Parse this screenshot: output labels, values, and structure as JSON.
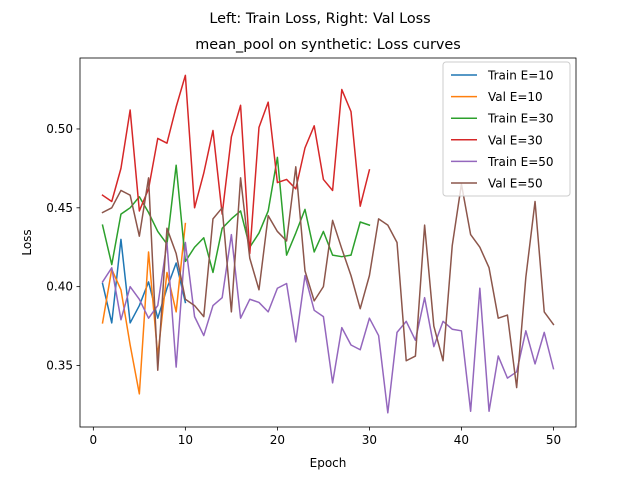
{
  "figure": {
    "suptitle": "Left: Train Loss, Right: Val Loss"
  },
  "chart_data": {
    "type": "line",
    "title": "mean_pool on synthetic: Loss curves",
    "xlabel": "Epoch",
    "ylabel": "Loss",
    "xlim": [
      -1.45,
      52.45
    ],
    "ylim": [
      0.311,
      0.545
    ],
    "xticks": [
      0,
      10,
      20,
      30,
      40,
      50
    ],
    "yticks": [
      0.35,
      0.4,
      0.45,
      0.5
    ],
    "xtick_labels": [
      "0",
      "10",
      "20",
      "30",
      "40",
      "50"
    ],
    "ytick_labels": [
      "0.35",
      "0.40",
      "0.45",
      "0.50"
    ],
    "grid": false,
    "legend_position": "top-right",
    "series": [
      {
        "name": "Train E=10",
        "color": "#1f77b4",
        "x": [
          1,
          2,
          3,
          4,
          5,
          6,
          7,
          8,
          9,
          10
        ],
        "y": [
          0.402,
          0.377,
          0.43,
          0.377,
          0.388,
          0.403,
          0.38,
          0.399,
          0.415,
          0.39
        ]
      },
      {
        "name": "Val E=10",
        "color": "#ff7f0e",
        "x": [
          1,
          2,
          3,
          4,
          5,
          6,
          7,
          8,
          9,
          10
        ],
        "y": [
          0.377,
          0.411,
          0.398,
          0.363,
          0.332,
          0.422,
          0.356,
          0.409,
          0.384,
          0.44
        ]
      },
      {
        "name": "Train E=30",
        "color": "#2ca02c",
        "x": [
          1,
          2,
          3,
          4,
          5,
          6,
          7,
          8,
          9,
          10,
          11,
          12,
          13,
          14,
          15,
          16,
          17,
          18,
          19,
          20,
          21,
          22,
          23,
          24,
          25,
          26,
          27,
          28,
          29,
          30
        ],
        "y": [
          0.439,
          0.414,
          0.446,
          0.45,
          0.457,
          0.447,
          0.435,
          0.427,
          0.477,
          0.416,
          0.425,
          0.431,
          0.409,
          0.437,
          0.443,
          0.448,
          0.425,
          0.434,
          0.448,
          0.482,
          0.42,
          0.434,
          0.449,
          0.422,
          0.435,
          0.42,
          0.419,
          0.42,
          0.441,
          0.439
        ]
      },
      {
        "name": "Val E=30",
        "color": "#d62728",
        "x": [
          1,
          2,
          3,
          4,
          5,
          6,
          7,
          8,
          9,
          10,
          11,
          12,
          13,
          14,
          15,
          16,
          17,
          18,
          19,
          20,
          21,
          22,
          23,
          24,
          25,
          26,
          27,
          28,
          29,
          30
        ],
        "y": [
          0.458,
          0.454,
          0.475,
          0.512,
          0.448,
          0.462,
          0.494,
          0.491,
          0.514,
          0.534,
          0.45,
          0.472,
          0.499,
          0.446,
          0.495,
          0.515,
          0.421,
          0.501,
          0.517,
          0.466,
          0.468,
          0.462,
          0.488,
          0.502,
          0.468,
          0.461,
          0.525,
          0.511,
          0.451,
          0.474
        ]
      },
      {
        "name": "Train E=50",
        "color": "#9467bd",
        "x": [
          1,
          2,
          3,
          4,
          5,
          6,
          7,
          8,
          9,
          10,
          11,
          12,
          13,
          14,
          15,
          16,
          17,
          18,
          19,
          20,
          21,
          22,
          23,
          24,
          25,
          26,
          27,
          28,
          29,
          30,
          31,
          32,
          33,
          34,
          35,
          36,
          37,
          38,
          39,
          40,
          41,
          42,
          43,
          44,
          45,
          46,
          47,
          48,
          49,
          50
        ],
        "y": [
          0.403,
          0.412,
          0.379,
          0.4,
          0.392,
          0.38,
          0.388,
          0.428,
          0.349,
          0.428,
          0.381,
          0.369,
          0.388,
          0.393,
          0.433,
          0.38,
          0.392,
          0.39,
          0.384,
          0.399,
          0.402,
          0.365,
          0.407,
          0.385,
          0.381,
          0.339,
          0.374,
          0.363,
          0.36,
          0.38,
          0.369,
          0.32,
          0.371,
          0.378,
          0.366,
          0.393,
          0.362,
          0.378,
          0.373,
          0.372,
          0.321,
          0.399,
          0.321,
          0.356,
          0.342,
          0.346,
          0.372,
          0.351,
          0.371,
          0.348
        ]
      },
      {
        "name": "Val E=50",
        "color": "#8c564b",
        "x": [
          1,
          2,
          3,
          4,
          5,
          6,
          7,
          8,
          9,
          10,
          11,
          12,
          13,
          14,
          15,
          16,
          17,
          18,
          19,
          20,
          21,
          22,
          23,
          24,
          25,
          26,
          27,
          28,
          29,
          30,
          31,
          32,
          33,
          34,
          35,
          36,
          37,
          38,
          39,
          40,
          41,
          42,
          43,
          44,
          45,
          46,
          47,
          48,
          49,
          50
        ],
        "y": [
          0.447,
          0.45,
          0.461,
          0.458,
          0.432,
          0.469,
          0.347,
          0.437,
          0.421,
          0.392,
          0.388,
          0.381,
          0.443,
          0.45,
          0.384,
          0.469,
          0.418,
          0.398,
          0.445,
          0.435,
          0.429,
          0.476,
          0.41,
          0.391,
          0.4,
          0.442,
          0.424,
          0.407,
          0.386,
          0.407,
          0.443,
          0.439,
          0.428,
          0.353,
          0.356,
          0.439,
          0.375,
          0.353,
          0.426,
          0.465,
          0.433,
          0.425,
          0.412,
          0.38,
          0.382,
          0.336,
          0.406,
          0.454,
          0.384,
          0.376
        ]
      }
    ]
  }
}
